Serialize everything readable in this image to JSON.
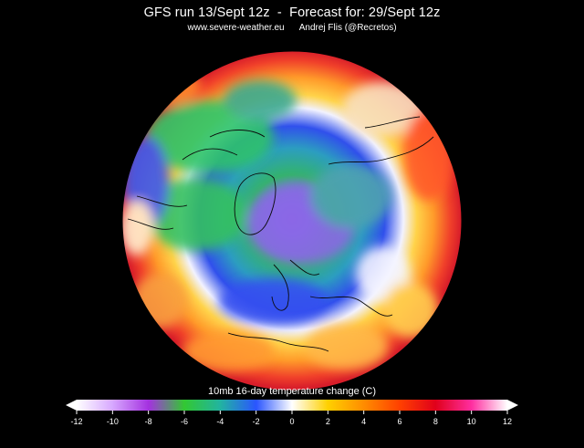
{
  "header": {
    "title": "GFS run 13/Sept 12z  -  Forecast for: 29/Sept 12z",
    "subtitle": "www.severe-weather.eu      Andrej Flis (@Recretos)"
  },
  "map": {
    "projection": "north-polar-stereographic",
    "field": "10mb 16-day temperature change",
    "background_color": "#000000",
    "coastline_color": "#000000"
  },
  "legend": {
    "title": "10mb  16-day temperature change (C)",
    "ticks": [
      "-12",
      "-10",
      "-8",
      "-6",
      "-4",
      "-2",
      "0",
      "2",
      "4",
      "6",
      "8",
      "10",
      "12"
    ],
    "colors": {
      "-12": "#ffffff",
      "-10": "#d7a8ff",
      "-8": "#a431e0",
      "-6": "#32c832",
      "-4": "#22b4a0",
      "-2": "#2a55ff",
      "0": "#ffffff",
      "2": "#ffd000",
      "4": "#ff8c00",
      "6": "#ff4000",
      "8": "#e0001a",
      "10": "#ff2ea0",
      "12": "#ffffff"
    }
  }
}
